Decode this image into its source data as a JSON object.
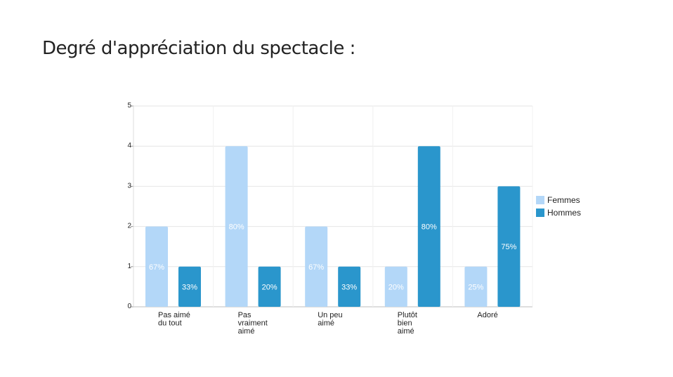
{
  "title": "Degré d'appréciation du spectacle :",
  "colors": {
    "Femmes": "#b3d7f8",
    "Hommes": "#2a96cc"
  },
  "chart_data": {
    "type": "bar",
    "categories": [
      [
        "Pas aimé",
        "du tout"
      ],
      [
        "Pas",
        "vraiment",
        "aimé"
      ],
      [
        "Un peu",
        "aimé"
      ],
      [
        "Plutôt",
        "bien",
        "aimé"
      ],
      [
        "Adoré"
      ]
    ],
    "series": [
      {
        "name": "Femmes",
        "values": [
          2,
          4,
          2,
          1,
          1
        ],
        "labels": [
          "67%",
          "80%",
          "67%",
          "20%",
          "25%"
        ]
      },
      {
        "name": "Hommes",
        "values": [
          1,
          1,
          1,
          4,
          3
        ],
        "labels": [
          "33%",
          "20%",
          "33%",
          "80%",
          "75%"
        ]
      }
    ],
    "yticks": [
      0,
      1,
      2,
      3,
      4,
      5
    ],
    "ylim": [
      0,
      5
    ],
    "grid": true,
    "legend": "right"
  }
}
